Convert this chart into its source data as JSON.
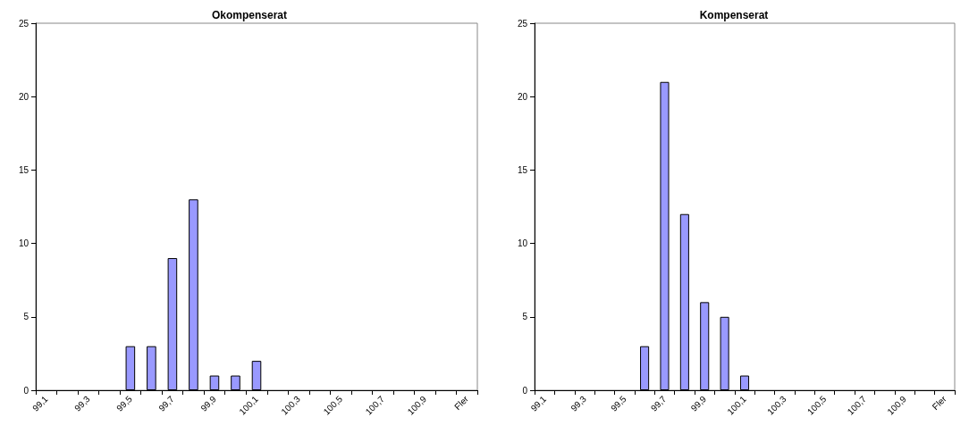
{
  "chart_data": [
    {
      "type": "bar",
      "title": "Okompenserat",
      "categories": [
        "99,1",
        null,
        "99,3",
        null,
        "99,5",
        null,
        "99,7",
        null,
        "99,9",
        null,
        "100,1",
        null,
        "100,3",
        null,
        "100,5",
        null,
        "100,7",
        null,
        "100,9",
        null,
        "Fler"
      ],
      "values": [
        0,
        0,
        0,
        0,
        3,
        3,
        9,
        13,
        1,
        1,
        2,
        0,
        0,
        0,
        0,
        0,
        0,
        0,
        0,
        0,
        0
      ],
      "color": "#9999ff",
      "ylim": [
        0,
        25
      ],
      "yticks": [
        0,
        5,
        10,
        15,
        20,
        25
      ],
      "grid": false
    },
    {
      "type": "bar",
      "title": "Kompenserat",
      "categories": [
        "99,1",
        null,
        "99,3",
        null,
        "99,5",
        null,
        "99,7",
        null,
        "99,9",
        null,
        "100,1",
        null,
        "100,3",
        null,
        "100,5",
        null,
        "100,7",
        null,
        "100,9",
        null,
        "Fler"
      ],
      "values": [
        0,
        0,
        0,
        0,
        0,
        3,
        21,
        12,
        6,
        5,
        1,
        0,
        0,
        0,
        0,
        0,
        0,
        0,
        0,
        0,
        0
      ],
      "color": "#9999ff",
      "ylim": [
        0,
        25
      ],
      "yticks": [
        0,
        5,
        10,
        15,
        20,
        25
      ],
      "grid": false
    }
  ]
}
